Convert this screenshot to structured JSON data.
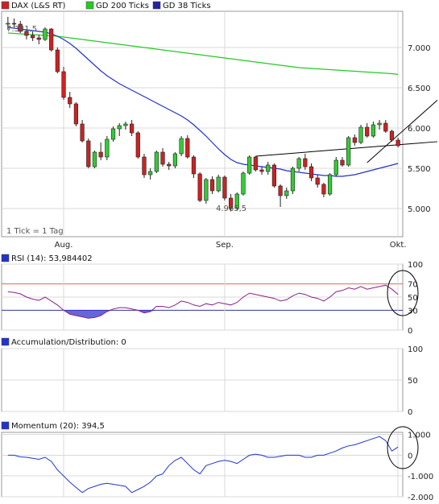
{
  "legend": [
    {
      "label": "DAX (L&S RT)",
      "color": "#cc2222"
    },
    {
      "label": "GD 200 Ticks",
      "color": "#22cc22"
    },
    {
      "label": "GD 38 Ticks",
      "color": "#2222aa"
    }
  ],
  "annotations": {
    "high_label": "7.381,5",
    "low_label": "4.965,5",
    "tick_note": "1 Tick = 1 Tag"
  },
  "price_axis": {
    "ticks": [
      "7.000",
      "6.500",
      "6.000",
      "5.500",
      "5.000"
    ],
    "tick_values": [
      7000,
      6500,
      6000,
      5500,
      5000
    ]
  },
  "x_axis": {
    "labels": [
      "Aug.",
      "Sep.",
      "Okt."
    ],
    "label_index": [
      9,
      35,
      63
    ]
  },
  "rsi": {
    "title": "RSI (14): 53,984402",
    "ticks": [
      "100",
      "70",
      "50",
      "30",
      "0"
    ],
    "tick_values": [
      100,
      70,
      50,
      30,
      0
    ]
  },
  "ad": {
    "title": "Accumulation/Distribution: 0",
    "ticks": [
      "100",
      "50",
      "0"
    ],
    "tick_values": [
      100,
      50,
      0
    ]
  },
  "momentum": {
    "title": "Momentum (20): 394,5",
    "ticks": [
      "1.000",
      "0",
      "-1.000",
      "-2.000"
    ],
    "tick_values": [
      1000,
      0,
      -1000,
      -2000
    ]
  },
  "colors": {
    "up": "#33cc33",
    "down": "#cc2222",
    "ma200": "#22cc22",
    "ma38": "#2233cc",
    "rsi_line": "#882288",
    "rsi_fill": "#3333cc",
    "momentum_line": "#2233cc",
    "trend_line": "#000000",
    "highlight": "#000000"
  },
  "chart_data": {
    "type": "candlestick",
    "price_range": [
      4650,
      7450
    ],
    "candles": [
      [
        7290,
        7381,
        7220,
        7300
      ],
      [
        7300,
        7360,
        7250,
        7290
      ],
      [
        7290,
        7330,
        7180,
        7200
      ],
      [
        7200,
        7220,
        7100,
        7150
      ],
      [
        7150,
        7200,
        7080,
        7120
      ],
      [
        7120,
        7160,
        7040,
        7100
      ],
      [
        7100,
        7250,
        7080,
        7230
      ],
      [
        7230,
        7240,
        6950,
        6970
      ],
      [
        6970,
        7000,
        6680,
        6700
      ],
      [
        6700,
        6760,
        6350,
        6380
      ],
      [
        6380,
        6450,
        6250,
        6300
      ],
      [
        6300,
        6320,
        6020,
        6050
      ],
      [
        6050,
        6100,
        5820,
        5840
      ],
      [
        5840,
        5870,
        5500,
        5520
      ],
      [
        5520,
        5720,
        5500,
        5700
      ],
      [
        5700,
        5820,
        5600,
        5640
      ],
      [
        5640,
        5900,
        5600,
        5860
      ],
      [
        5860,
        6020,
        5830,
        5990
      ],
      [
        5990,
        6060,
        5900,
        6030
      ],
      [
        6030,
        6080,
        5980,
        6050
      ],
      [
        6050,
        6100,
        5900,
        5940
      ],
      [
        5940,
        5960,
        5620,
        5640
      ],
      [
        5640,
        5680,
        5380,
        5420
      ],
      [
        5420,
        5500,
        5360,
        5460
      ],
      [
        5460,
        5720,
        5440,
        5700
      ],
      [
        5700,
        5750,
        5520,
        5550
      ],
      [
        5550,
        5580,
        5480,
        5530
      ],
      [
        5530,
        5700,
        5500,
        5680
      ],
      [
        5680,
        5900,
        5650,
        5870
      ],
      [
        5870,
        5910,
        5620,
        5640
      ],
      [
        5640,
        5660,
        5380,
        5430
      ],
      [
        5430,
        5450,
        5080,
        5100
      ],
      [
        5100,
        5380,
        5060,
        5360
      ],
      [
        5360,
        5400,
        5180,
        5220
      ],
      [
        5220,
        5420,
        5200,
        5390
      ],
      [
        5390,
        5410,
        5100,
        5130
      ],
      [
        5130,
        5180,
        4965,
        5000
      ],
      [
        5000,
        5200,
        4980,
        5180
      ],
      [
        5180,
        5460,
        5160,
        5440
      ],
      [
        5440,
        5660,
        5420,
        5640
      ],
      [
        5640,
        5650,
        5460,
        5480
      ],
      [
        5480,
        5520,
        5420,
        5460
      ],
      [
        5460,
        5580,
        5420,
        5540
      ],
      [
        5540,
        5560,
        5260,
        5280
      ],
      [
        5280,
        5300,
        5020,
        5160
      ],
      [
        5160,
        5260,
        5120,
        5220
      ],
      [
        5220,
        5520,
        5180,
        5500
      ],
      [
        5500,
        5640,
        5460,
        5620
      ],
      [
        5620,
        5680,
        5480,
        5520
      ],
      [
        5520,
        5560,
        5340,
        5380
      ],
      [
        5380,
        5420,
        5260,
        5300
      ],
      [
        5300,
        5320,
        5140,
        5180
      ],
      [
        5180,
        5440,
        5160,
        5420
      ],
      [
        5420,
        5640,
        5400,
        5600
      ],
      [
        5600,
        5640,
        5520,
        5540
      ],
      [
        5540,
        5900,
        5520,
        5880
      ],
      [
        5880,
        5920,
        5780,
        5820
      ],
      [
        5820,
        6040,
        5800,
        6010
      ],
      [
        6010,
        6060,
        5880,
        5900
      ],
      [
        5900,
        6080,
        5880,
        6040
      ],
      [
        6040,
        6100,
        5980,
        6060
      ],
      [
        6060,
        6100,
        5940,
        5960
      ],
      [
        5960,
        5980,
        5830,
        5850
      ],
      [
        5850,
        5880,
        5760,
        5780
      ]
    ],
    "ma200": [
      7180,
      7175,
      7170,
      7165,
      7160,
      7155,
      7150,
      7145,
      7140,
      7130,
      7120,
      7110,
      7100,
      7090,
      7080,
      7070,
      7060,
      7050,
      7040,
      7030,
      7020,
      7010,
      7000,
      6990,
      6980,
      6970,
      6960,
      6950,
      6940,
      6930,
      6920,
      6910,
      6900,
      6890,
      6880,
      6870,
      6860,
      6850,
      6840,
      6830,
      6820,
      6810,
      6800,
      6790,
      6780,
      6770,
      6760,
      6750,
      6745,
      6740,
      6735,
      6730,
      6725,
      6720,
      6715,
      6710,
      6705,
      6700,
      6695,
      6690,
      6685,
      6680,
      6675,
      6665
    ],
    "ma38": [
      7250,
      7240,
      7230,
      7220,
      7210,
      7200,
      7190,
      7170,
      7140,
      7100,
      7050,
      6990,
      6920,
      6850,
      6780,
      6710,
      6650,
      6600,
      6550,
      6510,
      6470,
      6430,
      6390,
      6350,
      6310,
      6270,
      6230,
      6190,
      6150,
      6100,
      6040,
      5970,
      5900,
      5820,
      5740,
      5670,
      5610,
      5570,
      5550,
      5540,
      5530,
      5520,
      5510,
      5500,
      5490,
      5470,
      5460,
      5450,
      5440,
      5430,
      5420,
      5410,
      5410,
      5400,
      5400,
      5410,
      5420,
      5440,
      5460,
      5480,
      5500,
      5520,
      5540,
      5560
    ],
    "trend_line": [
      [
        40,
        5650
      ],
      [
        66,
        5810
      ]
    ],
    "trend_line2": [
      [
        58,
        5570
      ],
      [
        64,
        5980
      ]
    ],
    "rsi": [
      58,
      57,
      55,
      50,
      47,
      45,
      50,
      44,
      38,
      30,
      24,
      22,
      20,
      18,
      19,
      22,
      28,
      32,
      34,
      34,
      32,
      30,
      26,
      28,
      36,
      36,
      34,
      38,
      44,
      42,
      38,
      36,
      40,
      38,
      42,
      40,
      38,
      42,
      50,
      56,
      54,
      52,
      50,
      48,
      44,
      46,
      52,
      56,
      54,
      50,
      48,
      44,
      50,
      58,
      60,
      64,
      62,
      66,
      62,
      64,
      66,
      68,
      62,
      54
    ],
    "momentum": [
      0,
      0,
      -80,
      -100,
      -150,
      -200,
      -100,
      -300,
      -700,
      -1000,
      -1300,
      -1550,
      -1800,
      -1600,
      -1500,
      -1400,
      -1350,
      -1400,
      -1450,
      -1500,
      -1800,
      -1650,
      -1500,
      -1300,
      -1000,
      -900,
      -500,
      -250,
      -100,
      -400,
      -700,
      -900,
      -500,
      -400,
      -300,
      -250,
      -300,
      -400,
      -200,
      0,
      50,
      0,
      -100,
      -100,
      -50,
      0,
      0,
      0,
      -100,
      -100,
      0,
      0,
      100,
      200,
      350,
      450,
      500,
      600,
      700,
      800,
      900,
      700,
      200,
      394.5
    ]
  }
}
